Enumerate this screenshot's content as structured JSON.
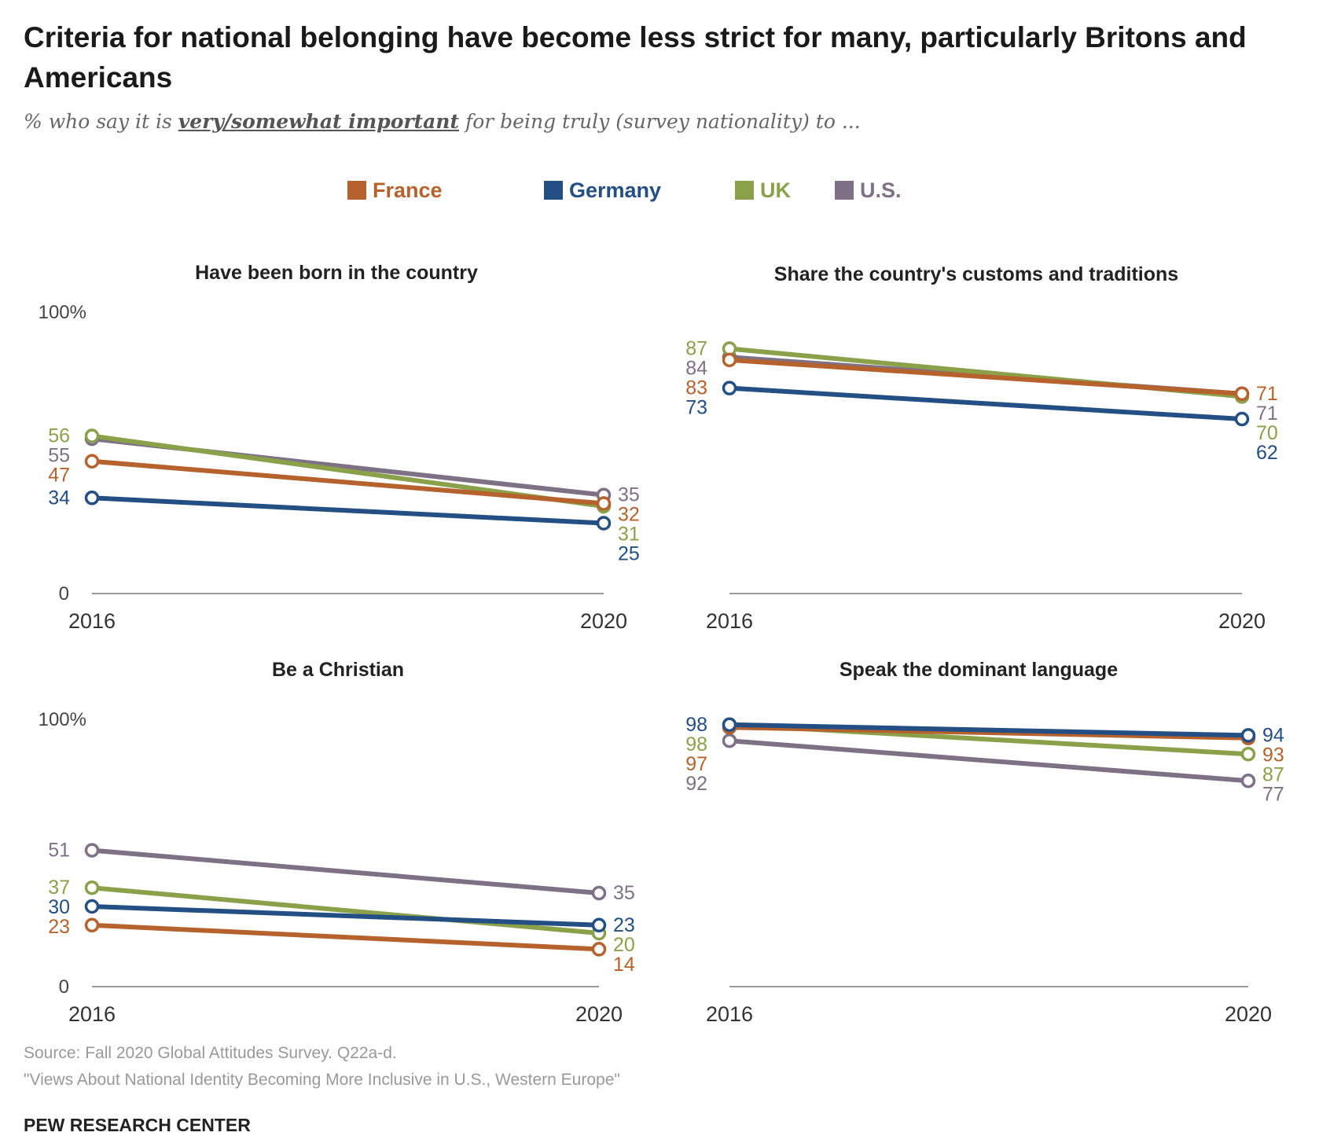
{
  "header": {
    "title": "Criteria for national belonging have become less strict for many, particularly Britons and Americans",
    "subtitle_before": "% who say it is ",
    "subtitle_emphasis": "very/somewhat important",
    "subtitle_after": " for being truly (survey nationality) to ..."
  },
  "colors": {
    "France": "#b6622d",
    "Germany": "#234f84",
    "UK": "#8aa14a",
    "U.S.": "#7e7085"
  },
  "legend": [
    {
      "label": "France",
      "color": "#b6622d"
    },
    {
      "label": "Germany",
      "color": "#234f84"
    },
    {
      "label": "UK",
      "color": "#8aa14a"
    },
    {
      "label": "U.S.",
      "color": "#7e7085"
    }
  ],
  "chart_data": [
    {
      "type": "line",
      "title": "Have been born in the country",
      "x": [
        "2016",
        "2020"
      ],
      "ylim": [
        0,
        100
      ],
      "ytick_labels": [
        "0",
        "100%"
      ],
      "series": [
        {
          "name": "France",
          "values": [
            47,
            32
          ]
        },
        {
          "name": "Germany",
          "values": [
            34,
            25
          ]
        },
        {
          "name": "UK",
          "values": [
            56,
            31
          ]
        },
        {
          "name": "U.S.",
          "values": [
            55,
            35
          ]
        }
      ]
    },
    {
      "type": "line",
      "title": "Share the country's customs and traditions",
      "x": [
        "2016",
        "2020"
      ],
      "ylim": [
        0,
        100
      ],
      "ytick_labels": [],
      "series": [
        {
          "name": "France",
          "values": [
            83,
            71
          ]
        },
        {
          "name": "Germany",
          "values": [
            73,
            62
          ]
        },
        {
          "name": "UK",
          "values": [
            87,
            70
          ]
        },
        {
          "name": "U.S.",
          "values": [
            84,
            71
          ]
        }
      ]
    },
    {
      "type": "line",
      "title": "Be a Christian",
      "x": [
        "2016",
        "2020"
      ],
      "ylim": [
        0,
        100
      ],
      "ytick_labels": [
        "0",
        "100%"
      ],
      "series": [
        {
          "name": "France",
          "values": [
            23,
            14
          ]
        },
        {
          "name": "Germany",
          "values": [
            30,
            23
          ]
        },
        {
          "name": "UK",
          "values": [
            37,
            20
          ]
        },
        {
          "name": "U.S.",
          "values": [
            51,
            35
          ]
        }
      ]
    },
    {
      "type": "line",
      "title": "Speak the dominant language",
      "x": [
        "2016",
        "2020"
      ],
      "ylim": [
        0,
        100
      ],
      "ytick_labels": [],
      "series": [
        {
          "name": "France",
          "values": [
            97,
            93
          ]
        },
        {
          "name": "Germany",
          "values": [
            98,
            94
          ]
        },
        {
          "name": "UK",
          "values": [
            98,
            87
          ]
        },
        {
          "name": "U.S.",
          "values": [
            92,
            77
          ]
        }
      ]
    }
  ],
  "footer": {
    "source": "Source: Fall 2020 Global Attitudes Survey. Q22a-d.",
    "report": "\"Views About National Identity Becoming More Inclusive in U.S., Western Europe\"",
    "org": "PEW RESEARCH CENTER"
  }
}
